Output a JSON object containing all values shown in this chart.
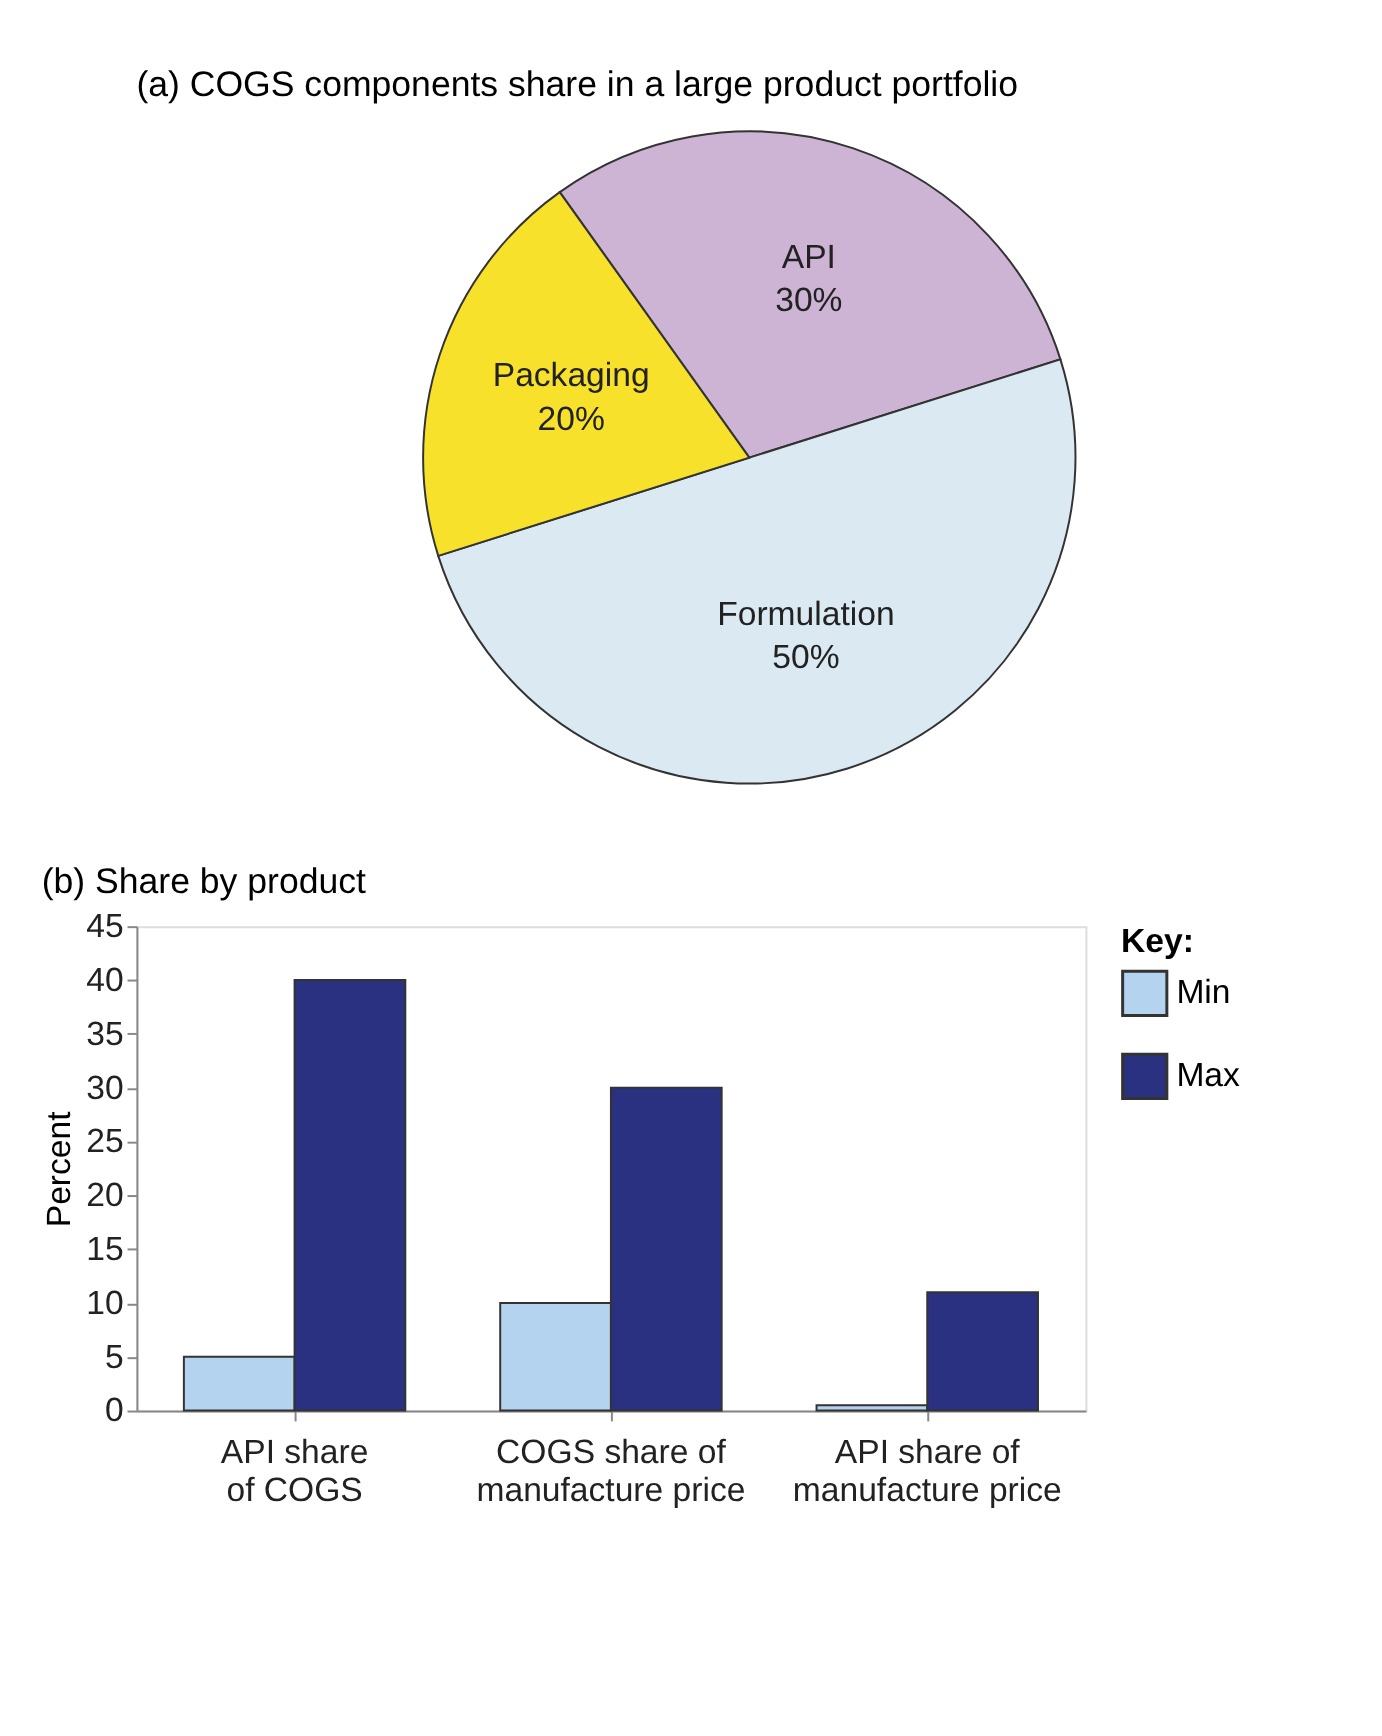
{
  "chart_data": [
    {
      "type": "pie",
      "title": "(a) COGS components share in a large product portfolio",
      "categories": [
        "API",
        "Formulation",
        "Packaging"
      ],
      "values": [
        30,
        50,
        20
      ],
      "colors": [
        "#cdb3d4",
        "#dbe9f3",
        "#f7e12a"
      ],
      "value_labels": [
        "30%",
        "50%",
        "20%"
      ],
      "legend": false
    },
    {
      "type": "bar",
      "title": "(b) Share by product",
      "ylabel": "Percent",
      "legend_title": "Key:",
      "legend": "right",
      "grid": false,
      "categories": [
        "API share\nof COGS",
        "COGS share of\nmanufacture price",
        "API share of\nmanufacture price"
      ],
      "ylim": [
        0,
        45
      ],
      "yticks": [
        0,
        5,
        10,
        15,
        20,
        25,
        30,
        35,
        40,
        45
      ],
      "series": [
        {
          "name": "Min",
          "color": "#b3d3ee",
          "values": [
            5,
            10,
            0.5
          ]
        },
        {
          "name": "Max",
          "color": "#2b3181",
          "values": [
            40,
            30,
            11
          ]
        }
      ]
    }
  ]
}
